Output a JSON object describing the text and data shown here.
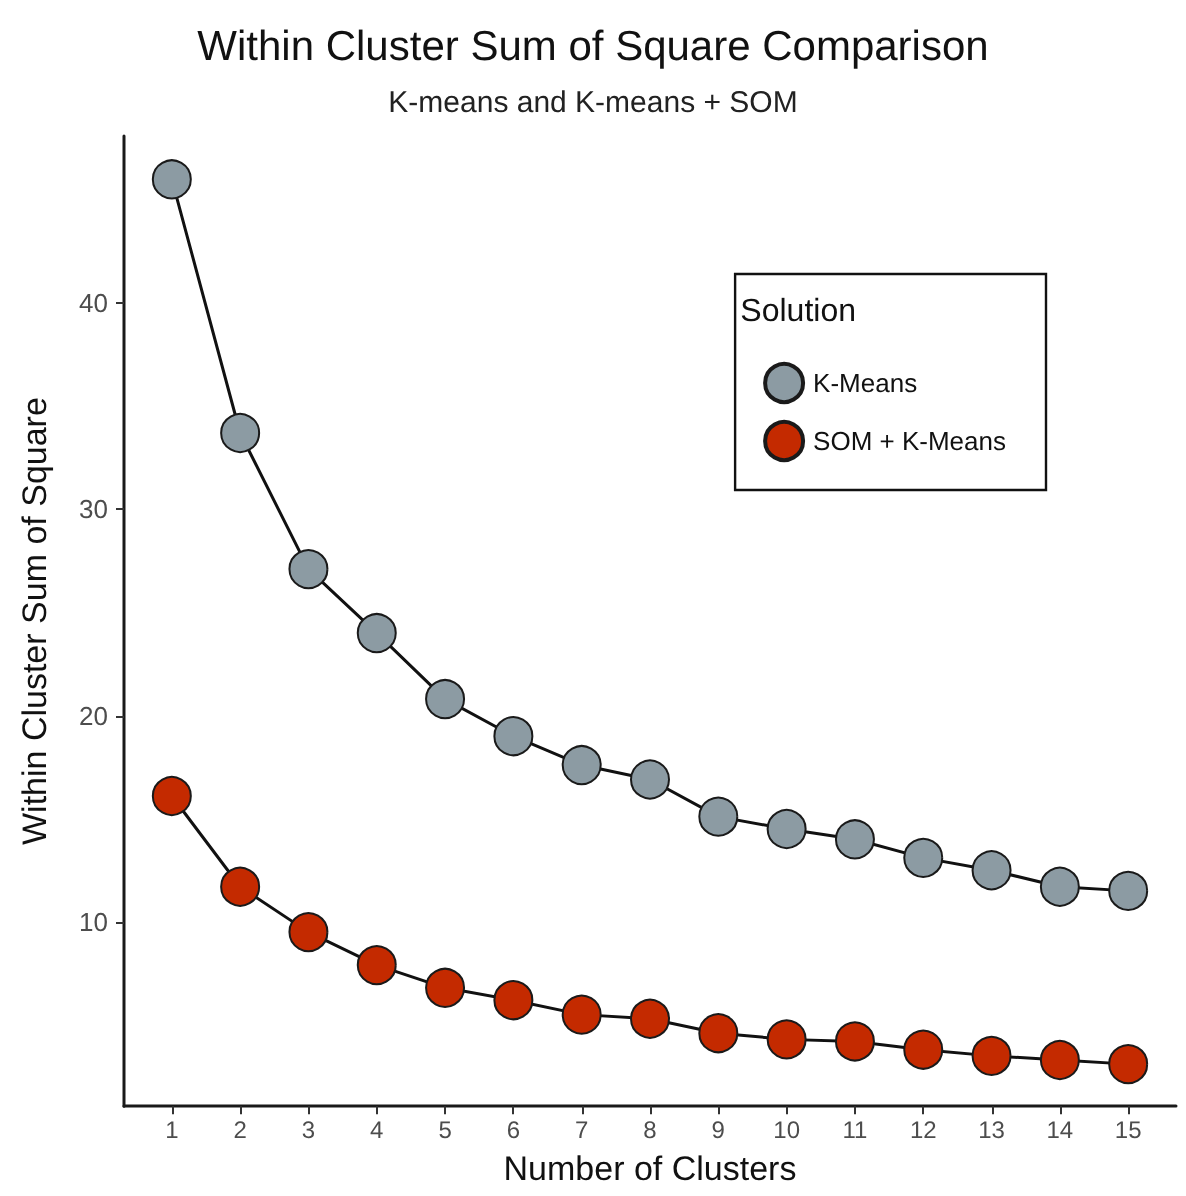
{
  "chart_data": {
    "type": "line",
    "title": "Within Cluster Sum of Square Comparison",
    "subtitle": "K-means and K-means + SOM",
    "xlabel": "Number of Clusters",
    "ylabel": "Within Cluster Sum of Square",
    "legend_title": "Solution",
    "x": [
      1,
      2,
      3,
      4,
      5,
      6,
      7,
      8,
      9,
      10,
      11,
      12,
      13,
      14,
      15
    ],
    "series": [
      {
        "name": "K-Means",
        "color": "#8c9ba3",
        "values": [
          46,
          33.7,
          27.1,
          24.0,
          20.8,
          19.0,
          17.6,
          16.9,
          15.1,
          14.5,
          14.0,
          13.1,
          12.5,
          11.7,
          11.5
        ]
      },
      {
        "name": "SOM + K-Means",
        "color": "#c42a00",
        "values": [
          16.1,
          11.7,
          9.5,
          7.9,
          6.8,
          6.2,
          5.5,
          5.3,
          4.6,
          4.3,
          4.2,
          3.8,
          3.5,
          3.3,
          3.1
        ]
      }
    ],
    "xlim": [
      0.3,
      15.7
    ],
    "xticks": [
      1,
      2,
      3,
      4,
      5,
      6,
      7,
      8,
      9,
      10,
      11,
      12,
      13,
      14,
      15
    ],
    "ylim": [
      1.06,
      48.1
    ],
    "yticks": [
      10,
      20,
      30,
      40
    ],
    "grid": false,
    "legend": "top right",
    "marker": "circle",
    "line_style": "solid"
  }
}
